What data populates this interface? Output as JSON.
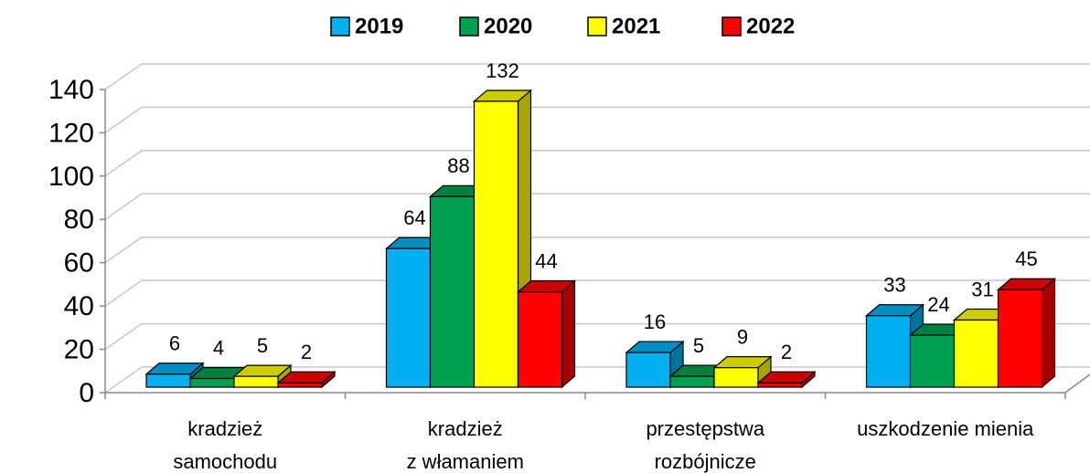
{
  "chart_data": {
    "type": "bar3d",
    "categories": [
      "kradzież\nsamochodu",
      "kradzież\nz włamaniem",
      "przestępstwa\nrozbójnicze",
      "uszkodzenie mienia"
    ],
    "series": [
      {
        "name": "2019",
        "color": "#00b0f0",
        "values": [
          6,
          64,
          16,
          33
        ]
      },
      {
        "name": "2020",
        "color": "#00a050",
        "values": [
          4,
          88,
          5,
          24
        ]
      },
      {
        "name": "2021",
        "color": "#ffff00",
        "values": [
          5,
          132,
          9,
          31
        ]
      },
      {
        "name": "2022",
        "color": "#ff0000",
        "values": [
          2,
          44,
          2,
          45
        ]
      }
    ],
    "ylim": [
      0,
      140
    ],
    "yticks": [
      0,
      20,
      40,
      60,
      80,
      100,
      120,
      140
    ],
    "grid": true,
    "legend": "top"
  }
}
